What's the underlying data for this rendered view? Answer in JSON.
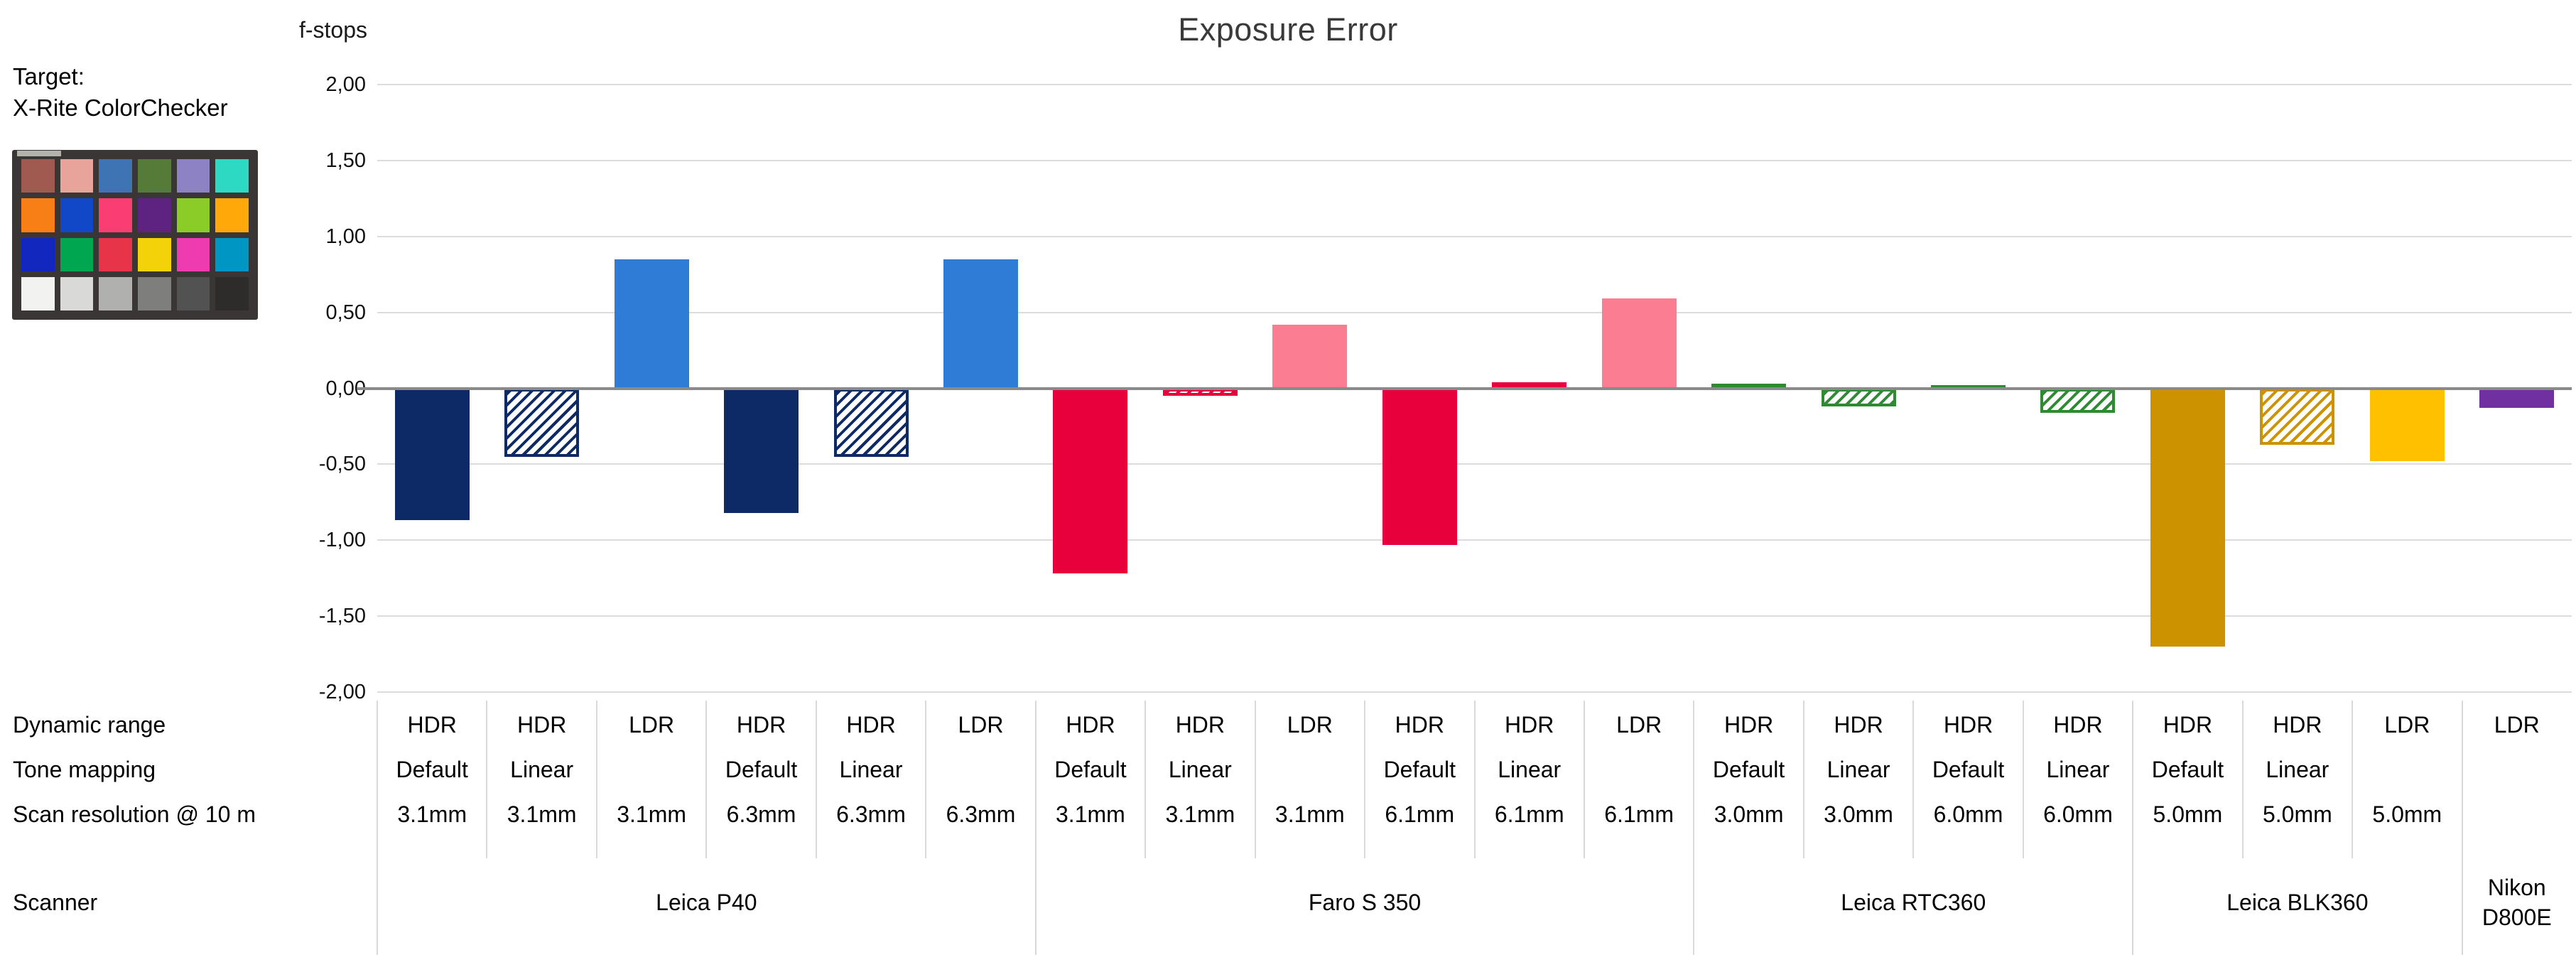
{
  "target_panel": {
    "label_line1": "Target:",
    "label_line2": "X-Rite ColorChecker",
    "colorchecker": {
      "frame_color": "#3a3635",
      "label_strip_color": "#c9c9c3",
      "patch_rows": [
        [
          "#a05a50",
          "#e8a49a",
          "#3e74b4",
          "#567a38",
          "#8c82c4",
          "#2dd9c2"
        ],
        [
          "#f87f16",
          "#1148c8",
          "#fa3e74",
          "#5e2280",
          "#8ccc28",
          "#ffa80a"
        ],
        [
          "#1227be",
          "#00a650",
          "#e83448",
          "#f4d20a",
          "#ee3cb0",
          "#0096c4"
        ],
        [
          "#f2f2f0",
          "#d9d9d7",
          "#b0b0ae",
          "#7e7e7c",
          "#525252",
          "#2e2c2b"
        ]
      ]
    }
  },
  "chart_data": {
    "type": "bar",
    "title": "Exposure Error",
    "ylabel": "f-stops",
    "ylim": [
      -2.0,
      2.0
    ],
    "grid": "horizontal",
    "legend_position": "none",
    "yticks": [
      {
        "value": 2.0,
        "label": "2,00"
      },
      {
        "value": 1.5,
        "label": "1,50"
      },
      {
        "value": 1.0,
        "label": "1,00"
      },
      {
        "value": 0.5,
        "label": "0,50"
      },
      {
        "value": 0.0,
        "label": "0,00"
      },
      {
        "value": -0.5,
        "label": "-0,50"
      },
      {
        "value": -1.0,
        "label": "-1,00"
      },
      {
        "value": -1.5,
        "label": "-1,50"
      },
      {
        "value": -2.0,
        "label": "-2,00"
      }
    ],
    "bars": [
      {
        "scanner": "Leica P40",
        "dynamic_range": "HDR",
        "tone_mapping": "Default",
        "scan_resolution": "3.1mm",
        "value": -0.87,
        "color": "#0d2a66",
        "pattern": "solid"
      },
      {
        "scanner": "Leica P40",
        "dynamic_range": "HDR",
        "tone_mapping": "Linear",
        "scan_resolution": "3.1mm",
        "value": -0.45,
        "color": "#0d2a66",
        "pattern": "hatch"
      },
      {
        "scanner": "Leica P40",
        "dynamic_range": "LDR",
        "tone_mapping": "",
        "scan_resolution": "3.1mm",
        "value": 0.85,
        "color": "#2e7cd6",
        "pattern": "solid"
      },
      {
        "scanner": "Leica P40",
        "dynamic_range": "HDR",
        "tone_mapping": "Default",
        "scan_resolution": "6.3mm",
        "value": -0.82,
        "color": "#0d2a66",
        "pattern": "solid"
      },
      {
        "scanner": "Leica P40",
        "dynamic_range": "HDR",
        "tone_mapping": "Linear",
        "scan_resolution": "6.3mm",
        "value": -0.45,
        "color": "#0d2a66",
        "pattern": "hatch"
      },
      {
        "scanner": "Leica P40",
        "dynamic_range": "LDR",
        "tone_mapping": "",
        "scan_resolution": "6.3mm",
        "value": 0.85,
        "color": "#2e7cd6",
        "pattern": "solid"
      },
      {
        "scanner": "Faro S 350",
        "dynamic_range": "HDR",
        "tone_mapping": "Default",
        "scan_resolution": "3.1mm",
        "value": -1.22,
        "color": "#e8003d",
        "pattern": "solid"
      },
      {
        "scanner": "Faro S 350",
        "dynamic_range": "HDR",
        "tone_mapping": "Linear",
        "scan_resolution": "3.1mm",
        "value": -0.05,
        "color": "#e8003d",
        "pattern": "hatch"
      },
      {
        "scanner": "Faro S 350",
        "dynamic_range": "LDR",
        "tone_mapping": "",
        "scan_resolution": "3.1mm",
        "value": 0.42,
        "color": "#fb7d92",
        "pattern": "solid"
      },
      {
        "scanner": "Faro S 350",
        "dynamic_range": "HDR",
        "tone_mapping": "Default",
        "scan_resolution": "6.1mm",
        "value": -1.03,
        "color": "#e8003d",
        "pattern": "solid"
      },
      {
        "scanner": "Faro S 350",
        "dynamic_range": "HDR",
        "tone_mapping": "Linear",
        "scan_resolution": "6.1mm",
        "value": 0.04,
        "color": "#e8003d",
        "pattern": "hatch"
      },
      {
        "scanner": "Faro S 350",
        "dynamic_range": "LDR",
        "tone_mapping": "",
        "scan_resolution": "6.1mm",
        "value": 0.59,
        "color": "#fb7d92",
        "pattern": "solid"
      },
      {
        "scanner": "Leica RTC360",
        "dynamic_range": "HDR",
        "tone_mapping": "Default",
        "scan_resolution": "3.0mm",
        "value": 0.03,
        "color": "#2e8b33",
        "pattern": "solid"
      },
      {
        "scanner": "Leica RTC360",
        "dynamic_range": "HDR",
        "tone_mapping": "Linear",
        "scan_resolution": "3.0mm",
        "value": -0.12,
        "color": "#2e8b33",
        "pattern": "hatch"
      },
      {
        "scanner": "Leica RTC360",
        "dynamic_range": "HDR",
        "tone_mapping": "Default",
        "scan_resolution": "6.0mm",
        "value": 0.02,
        "color": "#2e8b33",
        "pattern": "solid"
      },
      {
        "scanner": "Leica RTC360",
        "dynamic_range": "HDR",
        "tone_mapping": "Linear",
        "scan_resolution": "6.0mm",
        "value": -0.16,
        "color": "#2e8b33",
        "pattern": "hatch"
      },
      {
        "scanner": "Leica BLK360",
        "dynamic_range": "HDR",
        "tone_mapping": "Default",
        "scan_resolution": "5.0mm",
        "value": -1.7,
        "color": "#cc9200",
        "pattern": "solid"
      },
      {
        "scanner": "Leica BLK360",
        "dynamic_range": "HDR",
        "tone_mapping": "Linear",
        "scan_resolution": "5.0mm",
        "value": -0.37,
        "color": "#cc9200",
        "pattern": "hatch"
      },
      {
        "scanner": "Leica BLK360",
        "dynamic_range": "LDR",
        "tone_mapping": "",
        "scan_resolution": "5.0mm",
        "value": -0.48,
        "color": "#ffc000",
        "pattern": "solid"
      },
      {
        "scanner": "Nikon D800E",
        "dynamic_range": "LDR",
        "tone_mapping": "",
        "scan_resolution": "",
        "value": -0.13,
        "color": "#7030a0",
        "pattern": "solid"
      }
    ],
    "scanner_groups": [
      {
        "label": "Leica P40",
        "span": 6
      },
      {
        "label": "Faro S 350",
        "span": 6
      },
      {
        "label": "Leica RTC360",
        "span": 4
      },
      {
        "label": "Leica BLK360",
        "span": 3
      },
      {
        "label": "Nikon D800E",
        "span": 1
      }
    ]
  },
  "table": {
    "row_labels": [
      "Dynamic range",
      "Tone mapping",
      "Scan resolution @ 10 m",
      "Scanner"
    ]
  },
  "colors": {
    "gridline": "#dcdcdc",
    "zero_axis": "#8a8a8a",
    "separator": "#d9d9d9",
    "title_text": "#3a3a3a",
    "text": "#000000"
  }
}
